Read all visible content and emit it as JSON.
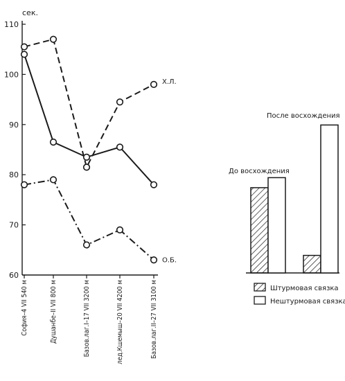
{
  "chart_data": [
    {
      "type": "line",
      "ylabel": "сек.",
      "ylim": [
        60,
        110
      ],
      "yticks": [
        "110",
        "100",
        "90",
        "80",
        "70",
        "60"
      ],
      "categories": [
        "София–4 VII 540 м",
        "Душанбе–II VII 800 м",
        "Базов.лаг.I–17 VII 3200 м",
        "лед.Кшемыш–20 VII 4200 м",
        "Базов.лаг.II–27 VII 3100 м"
      ],
      "series": [
        {
          "name": "",
          "style": "solid",
          "values": [
            104,
            86.5,
            83.5,
            85.5,
            78
          ]
        },
        {
          "name": "Х.Л.",
          "style": "dashed",
          "values": [
            105.5,
            107,
            81.5,
            94.5,
            98
          ]
        },
        {
          "name": "О.Б.",
          "style": "dashdot",
          "values": [
            78,
            79,
            66,
            69,
            63
          ]
        }
      ],
      "legend": "none",
      "grid": false
    },
    {
      "type": "bar",
      "categories": [
        "До восхождения",
        "После восхождения"
      ],
      "series": [
        {
          "name": "Штурмовая связка",
          "pattern": "hatched",
          "values": [
            77,
            63.5
          ]
        },
        {
          "name": "Нештурмовая связка",
          "pattern": "empty",
          "values": [
            79,
            89.5
          ]
        }
      ],
      "ylim": [
        60,
        110
      ],
      "legend": "bottom"
    }
  ]
}
